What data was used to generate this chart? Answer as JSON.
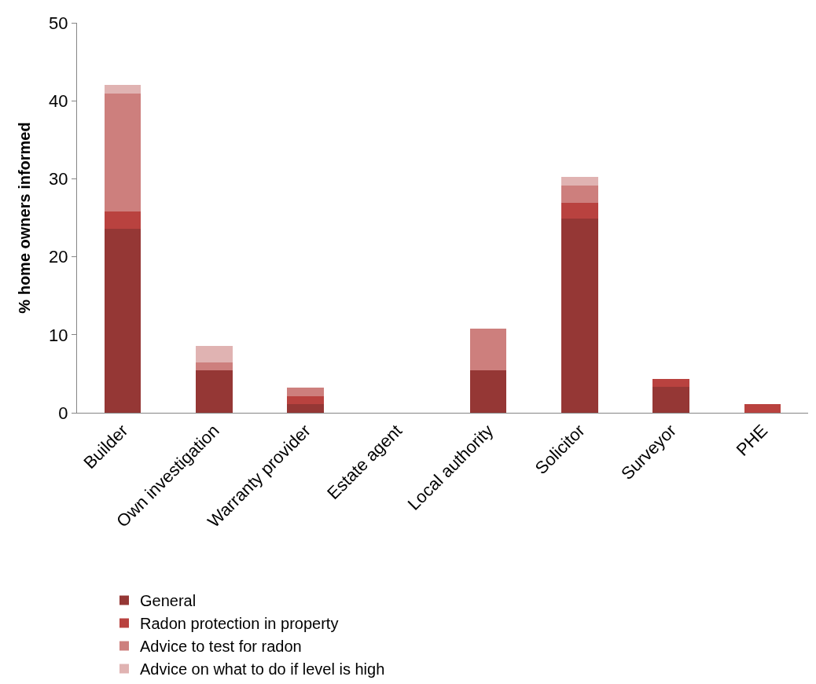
{
  "chart_data": {
    "type": "bar",
    "stacked": true,
    "ylabel": "% home owners informed",
    "categories": [
      "Builder",
      "Own investigation",
      "Warranty provider",
      "Estate agent",
      "Local authority",
      "Solicitor",
      "Surveyor",
      "PHE"
    ],
    "series": [
      {
        "name": "General",
        "color": "#953735",
        "values": [
          23.6,
          5.4,
          1.1,
          0,
          5.4,
          24.9,
          3.3,
          0
        ]
      },
      {
        "name": "Radon protection in property",
        "color": "#b9423f",
        "values": [
          2.2,
          0,
          1.0,
          0,
          0,
          2.0,
          1.0,
          1.1
        ]
      },
      {
        "name": "Advice to test for radon",
        "color": "#cd7f7d",
        "values": [
          15.1,
          1.1,
          1.1,
          0,
          5.4,
          2.2,
          0,
          0
        ]
      },
      {
        "name": "Advice on what to do if level is high",
        "color": "#e0b3b2",
        "values": [
          1.1,
          2.1,
          0,
          0,
          0,
          1.1,
          0,
          0
        ]
      }
    ],
    "ylim": [
      0,
      50
    ],
    "yticks": [
      0,
      10,
      20,
      30,
      40,
      50
    ],
    "grid": false,
    "legend": "bottom"
  }
}
